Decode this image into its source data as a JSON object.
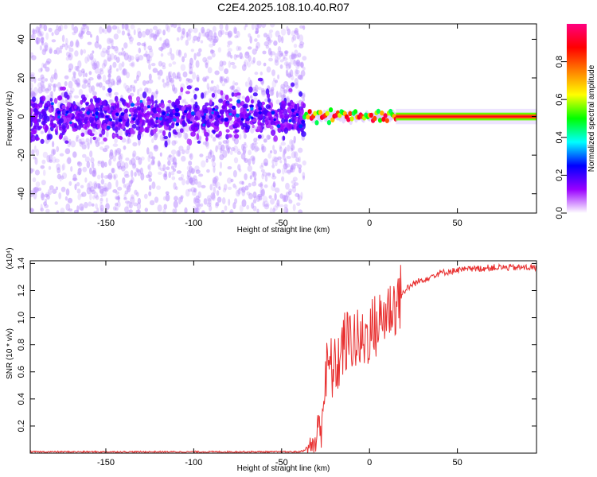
{
  "title": "C2E4.2025.108.10.40.R07",
  "chart_data": [
    {
      "type": "heatmap",
      "xlabel": "Height of straight line (km)",
      "ylabel": "Frequency (Hz)",
      "xlim": [
        -193,
        95
      ],
      "ylim": [
        -50,
        48
      ],
      "xticks": [
        -150,
        -100,
        -50,
        0,
        50
      ],
      "yticks": [
        -40,
        -20,
        0,
        20,
        40
      ],
      "colorbar": {
        "label": "Normalized spectral amplitude",
        "range": [
          0,
          1
        ],
        "ticks": [
          0.0,
          0.2,
          0.4,
          0.6,
          0.8
        ],
        "tick_labels": [
          "0.0",
          "0.2",
          "0.4",
          "0.6",
          "0.8"
        ],
        "colormap": [
          "#ffffff",
          "#9900ff",
          "#0000ff",
          "#00ffff",
          "#00ff00",
          "#ffff00",
          "#ff8000",
          "#ff0000",
          "#ff0080"
        ]
      },
      "description_points": [
        {
          "x_range": [
            -193,
            -37
          ],
          "region": "scattered low-amplitude noise across all frequencies, dense band near 0 Hz",
          "amplitude": 0.15
        },
        {
          "x_range": [
            -37,
            15
          ],
          "region": "narrow band near 0 Hz with localized peaks",
          "amplitude": 0.9
        },
        {
          "x_range": [
            15,
            95
          ],
          "region": "continuous strong carrier line at ~0 Hz",
          "amplitude": 1.0
        }
      ]
    },
    {
      "type": "line",
      "xlabel": "Height of straight line (km)",
      "ylabel": "SNR (10 * v/v)",
      "y_multiplier": "(x10⁴)",
      "xlim": [
        -193,
        95
      ],
      "ylim": [
        0,
        1.42
      ],
      "xticks": [
        -150,
        -100,
        -50,
        0,
        50
      ],
      "yticks": [
        0.2,
        0.4,
        0.6,
        0.8,
        1.0,
        1.2,
        1.4
      ],
      "ytick_labels": [
        "0.2",
        "0.4",
        "0.6",
        "0.8",
        "1.0",
        "1.2",
        "1.4"
      ],
      "color": "#e83030",
      "series": [
        {
          "x": [
            -193,
            -150,
            -100,
            -60,
            -40,
            -35,
            -30,
            -27,
            -25,
            -23,
            -20,
            -17,
            -15,
            -10,
            -5,
            0,
            5,
            10,
            15,
            20,
            25,
            30,
            40,
            50,
            60,
            70,
            80,
            90,
            95
          ],
          "y": [
            0.01,
            0.01,
            0.01,
            0.01,
            0.01,
            0.03,
            0.1,
            0.3,
            0.55,
            0.65,
            0.6,
            0.7,
            0.8,
            0.85,
            0.8,
            0.9,
            0.95,
            1.05,
            1.1,
            1.2,
            1.25,
            1.28,
            1.33,
            1.35,
            1.36,
            1.37,
            1.37,
            1.37,
            1.37
          ]
        }
      ]
    }
  ]
}
